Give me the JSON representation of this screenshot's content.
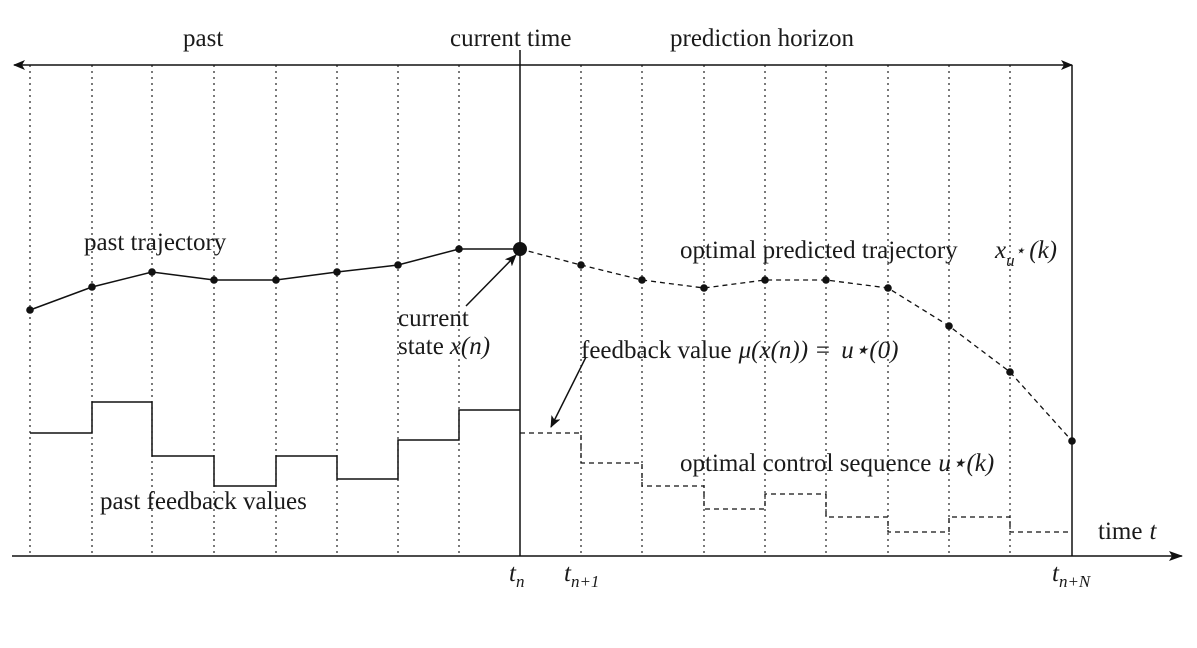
{
  "labels": {
    "past": "past",
    "current_time": "current time",
    "prediction_horizon": "prediction horizon",
    "past_trajectory": "past trajectory",
    "optimal_predicted_trajectory": "optimal predicted trajectory",
    "current_state_line1": "current",
    "current_state_line2": "state",
    "feedback_value": "feedback value",
    "optimal_control_sequence": "optimal control sequence",
    "past_feedback_values": "past feedback values",
    "time_axis": "time"
  },
  "math": {
    "x_u_star_k": "x",
    "u_star_sub": "u",
    "star": "⋆",
    "k_arg": "(k)",
    "x_of_n": "x(n)",
    "mu_expr": "μ(x(n)) =",
    "u_star_0": "u⋆(0)",
    "u_star_k_u": "u⋆(k)",
    "t_var": "t",
    "t_n": "t",
    "t_n_sub": "n",
    "t_n1": "t",
    "t_n1_sub": "n+1",
    "t_nN": "t",
    "t_nN_sub": "n+N"
  }
}
